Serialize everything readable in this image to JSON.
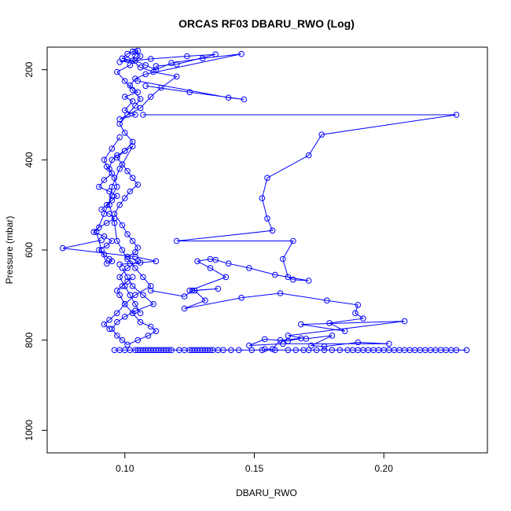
{
  "chart_data": {
    "type": "line",
    "title": "ORCAS RF03 DBARU_RWO (Log)",
    "xlabel": "DBARU_RWO",
    "ylabel": "Pressure (mbar)",
    "xlim": [
      0.07,
      0.24
    ],
    "ylim": [
      1050,
      150
    ],
    "y_reversed": true,
    "x_ticks": [
      0.1,
      0.15,
      0.2
    ],
    "x_tick_labels": [
      "0.10",
      "0.15",
      "0.20"
    ],
    "y_ticks": [
      200,
      400,
      600,
      800,
      1000
    ],
    "y_tick_labels": [
      "200",
      "400",
      "600",
      "800",
      "1000"
    ],
    "grid": false,
    "legend": "none",
    "marker": "open-circle",
    "colors": {
      "series": "#0000ff",
      "axis": "#000000",
      "background": "#ffffff"
    },
    "series": [
      {
        "x": [
          0.104,
          0.106,
          0.104,
          0.108,
          0.112,
          0.118,
          0.13,
          0.145,
          0.108,
          0.104,
          0.102,
          0.105,
          0.1,
          0.103,
          0.1,
          0.104,
          0.098,
          0.106,
          0.11,
          0.114,
          0.12,
          0.111,
          0.106,
          0.103,
          0.099,
          0.101,
          0.103,
          0.105,
          0.104,
          0.102,
          0.097,
          0.1,
          0.103,
          0.106,
          0.104,
          0.101,
          0.098,
          0.1,
          0.103,
          0.1,
          0.097,
          0.099,
          0.101,
          0.103,
          0.105,
          0.102,
          0.1,
          0.098,
          0.096,
          0.099,
          0.101,
          0.103,
          0.105,
          0.104,
          0.101,
          0.105,
          0.101,
          0.098,
          0.1,
          0.102,
          0.104,
          0.106
        ],
        "y": [
          160,
          170,
          180,
          190,
          200,
          185,
          175,
          165,
          210,
          220,
          235,
          250,
          260,
          270,
          290,
          300,
          310,
          285,
          260,
          240,
          215,
          205,
          195,
          180,
          175,
          165,
          160,
          158,
          168,
          190,
          205,
          225,
          245,
          265,
          280,
          300,
          320,
          340,
          360,
          380,
          395,
          410,
          425,
          440,
          455,
          470,
          485,
          500,
          520,
          545,
          565,
          580,
          595,
          605,
          615,
          625,
          640,
          660,
          680,
          700,
          720,
          740
        ]
      },
      {
        "x": [
          0.098,
          0.095,
          0.092,
          0.093,
          0.095,
          0.092,
          0.09,
          0.094,
          0.097,
          0.095,
          0.093,
          0.091,
          0.094,
          0.096,
          0.093,
          0.09,
          0.088,
          0.092,
          0.095,
          0.093,
          0.09,
          0.092,
          0.094,
          0.095,
          0.093,
          0.091,
          0.089,
          0.092,
          0.095,
          0.097,
          0.096,
          0.094,
          0.095,
          0.097,
          0.1,
          0.103,
          0.098,
          0.095,
          0.094,
          0.096,
          0.097,
          0.099,
          0.101,
          0.104,
          0.107,
          0.11,
          0.104,
          0.1,
          0.097,
          0.094,
          0.092,
          0.094
        ],
        "y": [
          350,
          375,
          400,
          415,
          430,
          445,
          460,
          470,
          480,
          490,
          500,
          510,
          520,
          530,
          540,
          550,
          560,
          570,
          580,
          590,
          600,
          610,
          620,
          625,
          630,
          600,
          560,
          520,
          480,
          460,
          440,
          420,
          400,
          390,
          380,
          370,
          420,
          460,
          500,
          540,
          580,
          600,
          620,
          640,
          660,
          680,
          700,
          720,
          740,
          755,
          765,
          775
        ]
      },
      {
        "x": [
          0.099,
          0.101,
          0.103,
          0.107,
          0.111,
          0.104,
          0.1,
          0.097,
          0.095,
          0.097,
          0.099,
          0.101,
          0.105,
          0.109,
          0.112,
          0.11,
          0.106,
          0.103,
          0.1,
          0.098,
          0.097,
          0.099,
          0.101,
          0.103
        ],
        "y": [
          640,
          660,
          680,
          700,
          720,
          735,
          748,
          760,
          775,
          790,
          800,
          810,
          800,
          790,
          780,
          770,
          760,
          740,
          720,
          700,
          690,
          680,
          670,
          660
        ]
      },
      {
        "x": [
          0.105,
          0.14,
          0.146,
          0.125,
          0.108
        ],
        "y": [
          225,
          262,
          266,
          250,
          236
        ]
      },
      {
        "x": [
          0.107,
          0.228,
          0.176,
          0.171,
          0.155,
          0.153,
          0.155,
          0.157,
          0.12,
          0.165,
          0.161,
          0.163,
          0.165,
          0.171,
          0.158,
          0.148,
          0.14,
          0.135,
          0.133,
          0.128,
          0.133,
          0.139,
          0.125
        ],
        "y": [
          300,
          300,
          344,
          390,
          440,
          485,
          530,
          557,
          580,
          580,
          620,
          660,
          666,
          668,
          655,
          640,
          630,
          622,
          620,
          625,
          640,
          660,
          690
        ]
      },
      {
        "x": [
          0.091,
          0.076,
          0.104,
          0.112,
          0.106,
          0.102,
          0.098
        ],
        "y": [
          578,
          596,
          615,
          625,
          628,
          630,
          632
        ]
      },
      {
        "x": [
          0.11,
          0.123,
          0.126,
          0.136,
          0.127,
          0.131,
          0.123,
          0.145,
          0.16,
          0.178,
          0.19,
          0.189,
          0.192,
          0.179,
          0.185,
          0.168,
          0.208,
          0.163,
          0.17,
          0.18,
          0.172,
          0.177,
          0.19,
          0.202,
          0.161,
          0.148,
          0.154,
          0.163,
          0.168,
          0.16,
          0.157,
          0.154
        ],
        "y": [
          690,
          703,
          690,
          686,
          690,
          712,
          730,
          706,
          696,
          712,
          722,
          740,
          752,
          762,
          780,
          765,
          758,
          790,
          797,
          790,
          812,
          814,
          805,
          808,
          808,
          812,
          798,
          802,
          796,
          800,
          820,
          820
        ]
      },
      {
        "x": [
          0.096,
          0.098,
          0.1,
          0.102,
          0.104,
          0.105,
          0.106,
          0.107,
          0.108,
          0.109,
          0.11,
          0.111,
          0.112,
          0.113,
          0.114,
          0.115,
          0.116,
          0.117,
          0.118,
          0.121,
          0.123,
          0.125,
          0.126,
          0.127,
          0.128,
          0.129,
          0.13,
          0.131,
          0.132,
          0.133,
          0.134,
          0.136,
          0.138,
          0.141,
          0.144,
          0.149,
          0.153,
          0.158,
          0.163,
          0.166,
          0.169,
          0.171,
          0.174,
          0.177,
          0.18,
          0.183,
          0.186,
          0.188,
          0.19,
          0.192,
          0.194,
          0.196,
          0.198,
          0.2,
          0.202,
          0.204,
          0.206,
          0.208,
          0.21,
          0.212,
          0.214,
          0.216,
          0.218,
          0.22,
          0.222,
          0.224,
          0.226,
          0.228,
          0.232
        ],
        "y": [
          822,
          822,
          822,
          822,
          822,
          822,
          822,
          822,
          822,
          822,
          822,
          822,
          822,
          822,
          822,
          822,
          822,
          822,
          822,
          822,
          822,
          822,
          822,
          822,
          822,
          822,
          822,
          822,
          822,
          822,
          822,
          822,
          822,
          822,
          822,
          822,
          822,
          822,
          822,
          822,
          822,
          822,
          822,
          822,
          822,
          822,
          822,
          822,
          822,
          822,
          822,
          822,
          822,
          822,
          822,
          822,
          822,
          822,
          822,
          822,
          822,
          822,
          822,
          822,
          822,
          822,
          822,
          822,
          822
        ]
      },
      {
        "x": [
          0.101,
          0.098,
          0.11,
          0.124,
          0.135,
          0.12,
          0.112
        ],
        "y": [
          178,
          183,
          176,
          170,
          166,
          188,
          192
        ]
      }
    ]
  }
}
